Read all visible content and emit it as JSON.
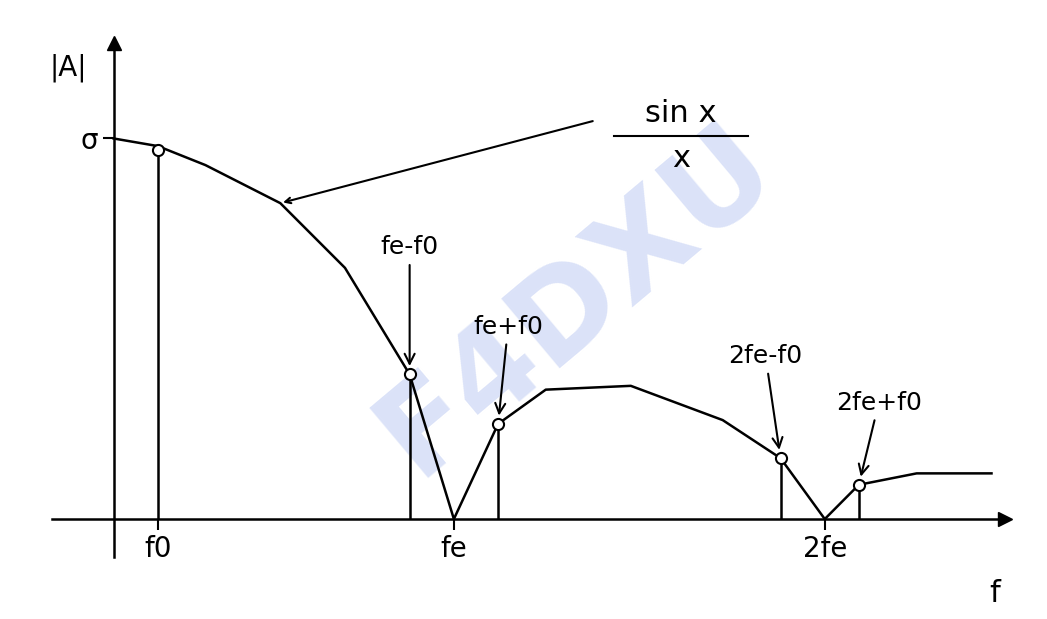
{
  "chart_data": {
    "type": "line",
    "x_label": "f",
    "y_label": "|A|",
    "envelope_label": {
      "numerator": "sin x",
      "denominator": "x"
    },
    "x": [
      0,
      0.13,
      0.27,
      0.49,
      0.68,
      0.87,
      1.0,
      1.13,
      1.27,
      1.52,
      1.79,
      1.96,
      2.09,
      2.19,
      2.36,
      2.58
    ],
    "values": [
      1.0,
      0.98,
      0.93,
      0.83,
      0.66,
      0.38,
      0,
      0.25,
      0.34,
      0.35,
      0.26,
      0.16,
      0,
      0.09,
      0.12,
      0.12
    ],
    "color": "#000000",
    "lines": {
      "x": [
        0.13,
        0.87,
        1.13,
        1.96,
        2.19
      ],
      "values": [
        0.97,
        0.38,
        0.25,
        0.16,
        0.09
      ],
      "labels": [
        null,
        "fe-f0",
        "fe+f0",
        "2fe-f0",
        "2fe+f0"
      ],
      "marker": "o"
    },
    "xlim": [
      -0.18,
      2.62
    ],
    "ylim": [
      -0.1,
      1.25
    ],
    "xticks": [
      {
        "value": 0.13,
        "label": "f0"
      },
      {
        "value": 1.0,
        "label": "fe"
      },
      {
        "value": 2.09,
        "label": "2fe"
      }
    ],
    "yticks": [
      {
        "value": 1.0,
        "label": "σ"
      }
    ],
    "grid": false,
    "watermark": "F4DXU"
  }
}
